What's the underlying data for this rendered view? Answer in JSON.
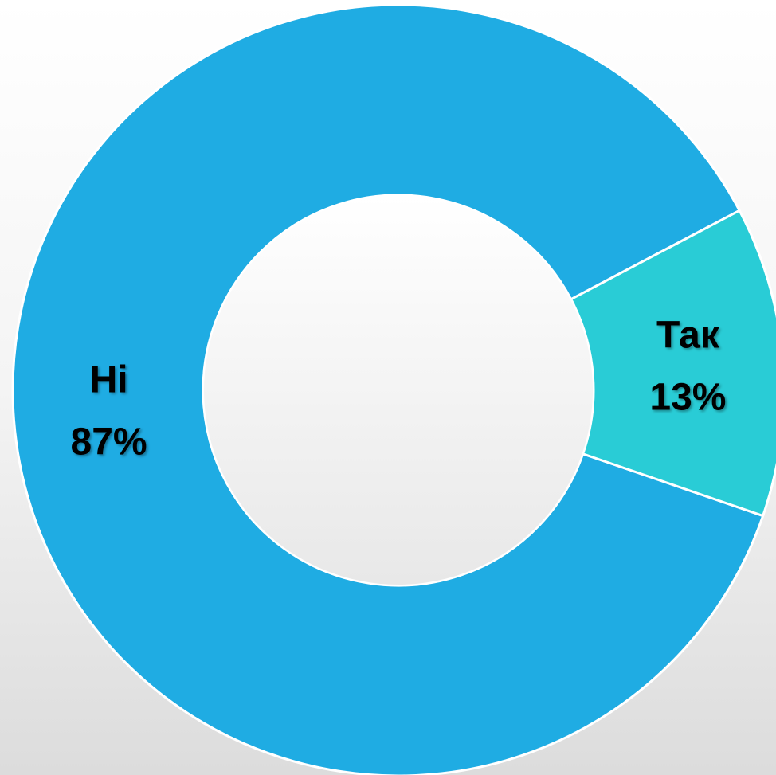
{
  "chart_data": {
    "type": "donut",
    "categories": [
      "Ні",
      "Так"
    ],
    "values": [
      87,
      13
    ],
    "value_labels": [
      "87%",
      "13%"
    ],
    "colors": [
      "#1face3",
      "#29ccd6"
    ]
  }
}
